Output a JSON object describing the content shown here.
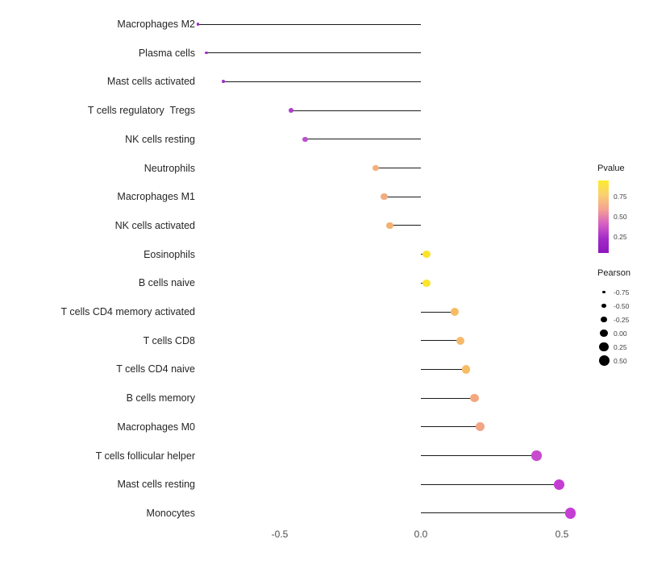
{
  "chart_data": {
    "type": "scatter",
    "subtype": "lollipop",
    "title": "",
    "xlabel": "",
    "ylabel": "",
    "x_axis": {
      "range": [
        -0.85,
        0.6
      ],
      "ticks": [
        -0.5,
        0.0,
        0.5
      ],
      "tick_labels": [
        "-0.5",
        "0.0",
        "0.5"
      ]
    },
    "grid": "off",
    "items": [
      {
        "label": "Macrophages M2",
        "pearson": -0.79,
        "color": "#9E28C6"
      },
      {
        "label": "Plasma cells",
        "pearson": -0.76,
        "color": "#A02BC8"
      },
      {
        "label": "Mast cells activated",
        "pearson": -0.7,
        "color": "#A431CA"
      },
      {
        "label": "T cells regulatory  Tregs",
        "pearson": -0.46,
        "color": "#AE3ECC"
      },
      {
        "label": "NK cells resting",
        "pearson": -0.41,
        "color": "#BC4FD0"
      },
      {
        "label": "Neutrophils",
        "pearson": -0.16,
        "color": "#F4AF7B"
      },
      {
        "label": "Macrophages M1",
        "pearson": -0.13,
        "color": "#F2AC80"
      },
      {
        "label": "NK cells activated",
        "pearson": -0.11,
        "color": "#F4B173"
      },
      {
        "label": "Eosinophils",
        "pearson": 0.02,
        "color": "#FBE32C"
      },
      {
        "label": "B cells naive",
        "pearson": 0.02,
        "color": "#FBE42A"
      },
      {
        "label": "T cells CD4 memory activated",
        "pearson": 0.12,
        "color": "#F7BC63"
      },
      {
        "label": "T cells CD8",
        "pearson": 0.14,
        "color": "#F6B96A"
      },
      {
        "label": "T cells CD4 naive",
        "pearson": 0.16,
        "color": "#F7BC66"
      },
      {
        "label": "B cells memory",
        "pearson": 0.19,
        "color": "#F2A77F"
      },
      {
        "label": "Macrophages M0",
        "pearson": 0.21,
        "color": "#F1A584"
      },
      {
        "label": "T cells follicular helper",
        "pearson": 0.41,
        "color": "#C84BCE"
      },
      {
        "label": "Mast cells resting",
        "pearson": 0.49,
        "color": "#C43DD2"
      },
      {
        "label": "Monocytes",
        "pearson": 0.53,
        "color": "#C33FD4"
      }
    ],
    "legend": {
      "position": "right",
      "pvalue": {
        "title": "Pvalue",
        "tick_labels": [
          "0.75",
          "0.50",
          "0.25"
        ],
        "tick_values": [
          0.75,
          0.5,
          0.25
        ],
        "bar_range": [
          0.95,
          0.05
        ],
        "gradient_top_to_bottom": [
          "#FCEC2D",
          "#FBCF72",
          "#F4A192",
          "#D65FC4",
          "#A32BC8",
          "#8E17BC"
        ]
      },
      "pearson": {
        "title": "Pearson",
        "entries": [
          {
            "label": "-0.75",
            "value": -0.75
          },
          {
            "label": "-0.50",
            "value": -0.5
          },
          {
            "label": "-0.25",
            "value": -0.25
          },
          {
            "label": "0.00",
            "value": 0.0
          },
          {
            "label": "0.25",
            "value": 0.25
          },
          {
            "label": "0.50",
            "value": 0.5
          }
        ],
        "dot_color": "#000000"
      }
    }
  }
}
